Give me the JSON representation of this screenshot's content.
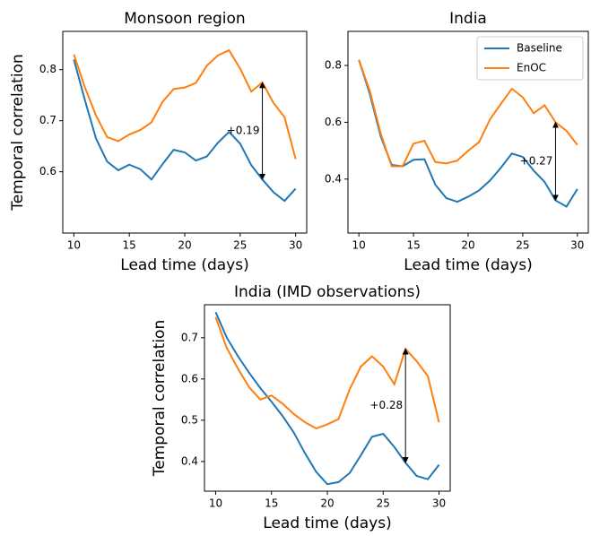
{
  "chart_data": [
    {
      "type": "line",
      "title": "Monsoon region",
      "xlabel": "Lead time (days)",
      "ylabel": "Temporal correlation",
      "x": [
        10,
        11,
        12,
        13,
        14,
        15,
        16,
        17,
        18,
        19,
        20,
        21,
        22,
        23,
        24,
        25,
        26,
        27,
        28,
        29,
        30
      ],
      "series": [
        {
          "name": "Baseline",
          "color": "#1f77b4",
          "values": [
            0.82,
            0.74,
            0.665,
            0.62,
            0.603,
            0.614,
            0.605,
            0.585,
            0.615,
            0.643,
            0.638,
            0.622,
            0.63,
            0.657,
            0.678,
            0.655,
            0.613,
            0.585,
            0.56,
            0.543,
            0.567
          ]
        },
        {
          "name": "EnOC",
          "color": "#ff7f0e",
          "values": [
            0.83,
            0.765,
            0.71,
            0.668,
            0.66,
            0.673,
            0.682,
            0.697,
            0.737,
            0.762,
            0.765,
            0.774,
            0.808,
            0.828,
            0.838,
            0.802,
            0.757,
            0.775,
            0.735,
            0.707,
            0.625
          ]
        }
      ],
      "xlim": [
        9,
        31
      ],
      "xticks": [
        10,
        15,
        20,
        25,
        30
      ],
      "ylim": [
        0.48,
        0.875
      ],
      "yticks": [
        0.6,
        0.7,
        0.8
      ],
      "annotation": {
        "text": "+0.19",
        "x": 27,
        "from": 0.775,
        "to": 0.585
      }
    },
    {
      "type": "line",
      "title": "India",
      "xlabel": "Lead time (days)",
      "x": [
        10,
        11,
        12,
        13,
        14,
        15,
        16,
        17,
        18,
        19,
        20,
        21,
        22,
        23,
        24,
        25,
        26,
        27,
        28,
        29,
        30
      ],
      "series": [
        {
          "name": "Baseline",
          "color": "#1f77b4",
          "values": [
            0.82,
            0.7,
            0.55,
            0.45,
            0.445,
            0.468,
            0.47,
            0.38,
            0.333,
            0.32,
            0.338,
            0.36,
            0.395,
            0.44,
            0.49,
            0.478,
            0.43,
            0.39,
            0.325,
            0.303,
            0.365
          ]
        },
        {
          "name": "EnOC",
          "color": "#ff7f0e",
          "values": [
            0.82,
            0.71,
            0.56,
            0.445,
            0.445,
            0.525,
            0.535,
            0.46,
            0.455,
            0.465,
            0.5,
            0.53,
            0.61,
            0.665,
            0.718,
            0.688,
            0.632,
            0.66,
            0.6,
            0.57,
            0.52
          ]
        }
      ],
      "xlim": [
        9,
        31
      ],
      "xticks": [
        10,
        15,
        20,
        25,
        30
      ],
      "ylim": [
        0.21,
        0.92
      ],
      "yticks": [
        0.4,
        0.6,
        0.8
      ],
      "legend": "upper right",
      "annotation": {
        "text": "+0.27",
        "x": 28,
        "from": 0.6,
        "to": 0.325
      }
    },
    {
      "type": "line",
      "title": "India (IMD observations)",
      "xlabel": "Lead time (days)",
      "ylabel": "Temporal correlation",
      "x": [
        10,
        11,
        12,
        13,
        14,
        15,
        16,
        17,
        18,
        19,
        20,
        21,
        22,
        23,
        24,
        25,
        26,
        27,
        28,
        29,
        30
      ],
      "series": [
        {
          "name": "Baseline",
          "color": "#1f77b4",
          "values": [
            0.762,
            0.7,
            0.655,
            0.615,
            0.578,
            0.545,
            0.51,
            0.47,
            0.42,
            0.375,
            0.345,
            0.35,
            0.372,
            0.415,
            0.46,
            0.467,
            0.435,
            0.397,
            0.365,
            0.357,
            0.392
          ]
        },
        {
          "name": "EnOC",
          "color": "#ff7f0e",
          "values": [
            0.75,
            0.675,
            0.625,
            0.58,
            0.55,
            0.56,
            0.54,
            0.515,
            0.495,
            0.48,
            0.49,
            0.503,
            0.575,
            0.63,
            0.655,
            0.63,
            0.587,
            0.673,
            0.643,
            0.607,
            0.495
          ]
        }
      ],
      "xlim": [
        9,
        31
      ],
      "xticks": [
        10,
        15,
        20,
        25,
        30
      ],
      "ylim": [
        0.328,
        0.78
      ],
      "yticks": [
        0.4,
        0.5,
        0.6,
        0.7
      ],
      "annotation": {
        "text": "+0.28",
        "x": 27,
        "from": 0.673,
        "to": 0.397
      }
    }
  ]
}
